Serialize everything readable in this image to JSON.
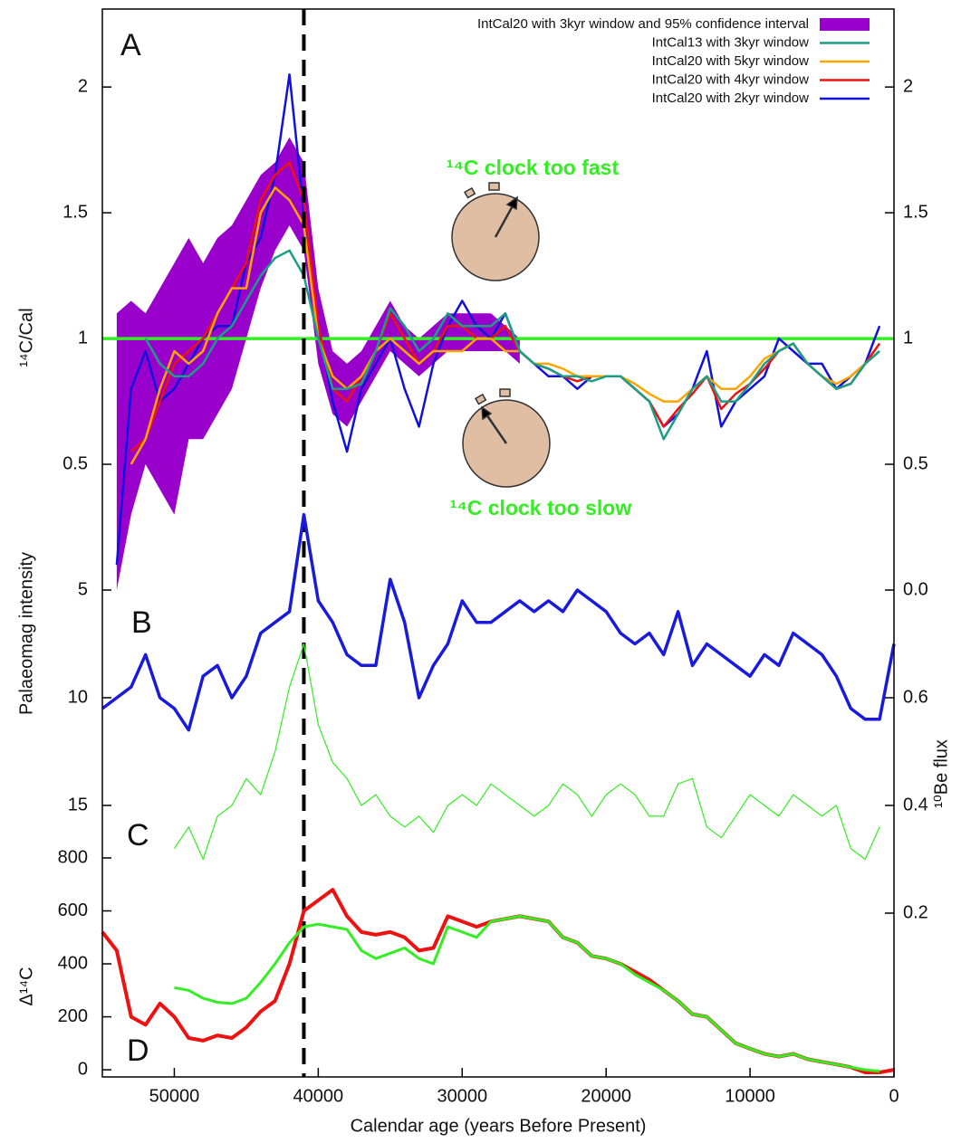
{
  "chart_data": [
    {
      "type": "line",
      "label": "A",
      "ylabel": "¹⁴C/Cal",
      "xlim": [
        55000,
        0
      ],
      "ylim": [
        0,
        2.31
      ],
      "yticks": [
        0.5,
        1,
        1.5,
        2
      ],
      "y2lim": [
        0,
        2.31
      ],
      "y2ticks": [
        {
          "value": 0,
          "label": "0.0"
        },
        0.5,
        1,
        1.5,
        2
      ],
      "legend": "upper right",
      "hline": {
        "value": 1,
        "color": "#33ee22"
      },
      "vline": 41000,
      "annotations": [
        "¹⁴C clock too fast",
        "¹⁴C clock too slow"
      ],
      "x": [
        54000,
        53000,
        52000,
        51000,
        50000,
        49000,
        48000,
        47000,
        46000,
        45000,
        44000,
        43000,
        42000,
        41000,
        40000,
        39000,
        38000,
        37000,
        36000,
        35000,
        34000,
        33000,
        32000,
        31000,
        30000,
        29000,
        28000,
        27000,
        26000,
        25000,
        24000,
        23000,
        22000,
        21000,
        20000,
        19000,
        18000,
        17000,
        16000,
        15000,
        14000,
        13000,
        12000,
        11000,
        10000,
        9000,
        8000,
        7000,
        6000,
        5000,
        4000,
        3000,
        2000,
        1000
      ],
      "band": {
        "name": "IntCal20 with 3kyr window and 95% confidence interval",
        "color": "#9900cc",
        "upper": [
          1.1,
          1.15,
          1.1,
          1.2,
          1.3,
          1.4,
          1.3,
          1.4,
          1.45,
          1.55,
          1.65,
          1.7,
          1.8,
          1.7,
          1.2,
          0.95,
          0.9,
          0.95,
          1.05,
          1.15,
          1.05,
          1.0,
          1.05,
          1.1,
          1.1,
          1.1,
          1.1,
          1.05,
          1.0,
          null,
          null,
          null,
          null,
          null,
          null,
          null,
          null,
          null,
          null,
          null,
          null,
          null,
          null,
          null,
          null,
          null,
          null,
          null,
          null,
          null,
          null,
          null,
          null,
          null
        ],
        "lower": [
          0.0,
          0.3,
          0.5,
          0.4,
          0.3,
          0.6,
          0.6,
          0.7,
          0.8,
          1.0,
          1.2,
          1.35,
          1.45,
          1.35,
          0.9,
          0.7,
          0.65,
          0.75,
          0.85,
          0.95,
          0.9,
          0.85,
          0.9,
          0.95,
          0.95,
          0.95,
          0.95,
          0.95,
          0.9,
          null,
          null,
          null,
          null,
          null,
          null,
          null,
          null,
          null,
          null,
          null,
          null,
          null,
          null,
          null,
          null,
          null,
          null,
          null,
          null,
          null,
          null,
          null,
          null,
          null
        ]
      },
      "series": [
        {
          "name": "IntCal13 with 3kyr window",
          "color": "#1a9e86",
          "values": [
            null,
            null,
            1.0,
            0.9,
            0.85,
            0.85,
            0.9,
            1.0,
            1.05,
            1.15,
            1.25,
            1.32,
            1.35,
            1.25,
            1.0,
            0.8,
            0.8,
            0.82,
            0.95,
            1.12,
            1.05,
            0.95,
            1.0,
            1.1,
            1.05,
            1.05,
            1.05,
            1.1,
            0.95,
            0.9,
            0.88,
            0.85,
            0.85,
            0.83,
            0.85,
            0.85,
            0.8,
            0.75,
            0.6,
            0.7,
            0.8,
            0.85,
            0.75,
            0.75,
            0.82,
            0.9,
            0.95,
            0.98,
            0.9,
            0.85,
            0.8,
            0.82,
            0.9,
            0.95
          ]
        },
        {
          "name": "IntCal20 with 5kyr window",
          "color": "#ffa500",
          "values": [
            null,
            0.5,
            0.6,
            0.8,
            0.95,
            0.9,
            0.95,
            1.1,
            1.2,
            1.2,
            1.5,
            1.6,
            1.55,
            1.45,
            1.0,
            0.85,
            0.8,
            0.85,
            0.95,
            1.0,
            0.95,
            0.9,
            0.95,
            0.95,
            0.95,
            1.0,
            1.0,
            0.95,
            0.95,
            0.9,
            0.9,
            0.88,
            0.85,
            0.85,
            0.85,
            0.85,
            0.82,
            0.78,
            0.75,
            0.75,
            0.8,
            0.85,
            0.8,
            0.8,
            0.85,
            0.92,
            0.95,
            0.98,
            0.9,
            0.85,
            0.82,
            0.85,
            0.9,
            0.95
          ]
        },
        {
          "name": "IntCal20 with 4kyr window",
          "color": "#ee1111",
          "values": [
            null,
            0.55,
            0.6,
            0.75,
            0.9,
            0.95,
            1.0,
            1.1,
            1.2,
            1.3,
            1.55,
            1.65,
            1.7,
            1.55,
            1.05,
            0.8,
            0.75,
            0.85,
            0.95,
            1.1,
            1.0,
            0.9,
            0.95,
            1.05,
            1.05,
            1.0,
            1.0,
            1.05,
            0.95,
            0.9,
            0.88,
            0.85,
            0.83,
            0.85,
            0.85,
            0.85,
            0.8,
            0.75,
            0.65,
            0.72,
            0.78,
            0.85,
            0.72,
            0.78,
            0.82,
            0.88,
            0.95,
            0.98,
            0.9,
            0.85,
            0.8,
            0.82,
            0.9,
            0.98
          ]
        },
        {
          "name": "IntCal20 with 2kyr window",
          "color": "#1111dd",
          "values": [
            0.1,
            0.8,
            0.95,
            0.75,
            0.8,
            0.9,
            1.0,
            1.05,
            1.05,
            1.3,
            1.4,
            1.65,
            2.05,
            1.5,
            1.05,
            0.75,
            0.55,
            0.8,
            0.9,
            1.0,
            0.8,
            0.65,
            0.9,
            1.05,
            1.15,
            1.05,
            1.0,
            1.1,
            0.95,
            0.9,
            0.85,
            0.85,
            0.8,
            0.85,
            0.85,
            0.85,
            0.8,
            0.75,
            0.65,
            0.7,
            0.8,
            0.95,
            0.65,
            0.75,
            0.8,
            0.85,
            1.0,
            0.95,
            0.9,
            0.9,
            0.8,
            0.85,
            0.9,
            1.05
          ]
        }
      ]
    },
    {
      "type": "line",
      "label": "B",
      "ylabel": "Palaeomag intensity",
      "xlim": [
        55000,
        0
      ],
      "ylim": [
        0,
        20
      ],
      "inverted": true,
      "yticks": [
        5,
        10,
        15
      ],
      "x": [
        55000,
        54000,
        53000,
        52000,
        51000,
        50000,
        49000,
        48000,
        47000,
        46000,
        45000,
        44000,
        43000,
        42000,
        41000,
        40000,
        39000,
        38000,
        37000,
        36000,
        35000,
        34000,
        33000,
        32000,
        31000,
        30000,
        29000,
        28000,
        27000,
        26000,
        25000,
        24000,
        23000,
        22000,
        21000,
        20000,
        19000,
        18000,
        17000,
        16000,
        15000,
        14000,
        13000,
        12000,
        11000,
        10000,
        9000,
        8000,
        7000,
        6000,
        5000,
        4000,
        3000,
        2000,
        1000,
        0
      ],
      "series": [
        {
          "color": "#1a1adc",
          "values": [
            10.5,
            10,
            9.5,
            8,
            10,
            10.5,
            11.5,
            9,
            8.5,
            10,
            9,
            7,
            6.5,
            6,
            1.5,
            5.5,
            6.5,
            8,
            8.5,
            8.5,
            4.5,
            6.5,
            10,
            8.5,
            7.5,
            5.5,
            6.5,
            6.5,
            6,
            5.5,
            6,
            5.5,
            6,
            5,
            5.5,
            6,
            7,
            7.5,
            7,
            8,
            6,
            8.5,
            7.5,
            8,
            8.5,
            9,
            8,
            8.5,
            7,
            7.5,
            8,
            9,
            10.5,
            11,
            11,
            7.5
          ]
        }
      ]
    },
    {
      "type": "line",
      "label": "C",
      "y2label": "¹⁰Be flux",
      "xlim": [
        55000,
        0
      ],
      "y2lim": [
        0.2,
        0.8
      ],
      "y2ticks": [
        0.2,
        0.4,
        0.6
      ],
      "x": [
        50000,
        49000,
        48000,
        47000,
        46000,
        45000,
        44000,
        43000,
        42000,
        41000,
        40000,
        39000,
        38000,
        37000,
        36000,
        35000,
        34000,
        33000,
        32000,
        31000,
        30000,
        29000,
        28000,
        27000,
        26000,
        25000,
        24000,
        23000,
        22000,
        21000,
        20000,
        19000,
        18000,
        17000,
        16000,
        15000,
        14000,
        13000,
        12000,
        11000,
        10000,
        9000,
        8000,
        7000,
        6000,
        5000,
        4000,
        3000,
        2000,
        1000
      ],
      "series": [
        {
          "color": "#33ee22",
          "axis": "y2",
          "values": [
            0.32,
            0.36,
            0.3,
            0.38,
            0.4,
            0.45,
            0.42,
            0.5,
            0.62,
            0.7,
            0.55,
            0.48,
            0.45,
            0.4,
            0.42,
            0.38,
            0.36,
            0.38,
            0.35,
            0.4,
            0.42,
            0.4,
            0.44,
            0.42,
            0.4,
            0.38,
            0.4,
            0.44,
            0.42,
            0.38,
            0.42,
            0.44,
            0.42,
            0.38,
            0.38,
            0.44,
            0.45,
            0.36,
            0.34,
            0.38,
            0.42,
            0.4,
            0.38,
            0.42,
            0.4,
            0.38,
            0.4,
            0.32,
            0.3,
            0.36
          ]
        }
      ]
    },
    {
      "type": "line",
      "label": "D",
      "ylabel": "Δ¹⁴C",
      "xlabel": "Calendar age (years Before Present)",
      "xlim": [
        55000,
        0
      ],
      "xticks": [
        50000,
        40000,
        30000,
        20000,
        10000,
        0
      ],
      "ylim": [
        -27,
        800
      ],
      "yticks": [
        0,
        200,
        400,
        600,
        800
      ],
      "x": [
        55000,
        54000,
        53000,
        52000,
        51000,
        50000,
        49000,
        48000,
        47000,
        46000,
        45000,
        44000,
        43000,
        42000,
        41000,
        40000,
        39000,
        38000,
        37000,
        36000,
        35000,
        34000,
        33000,
        32000,
        31000,
        30000,
        29000,
        28000,
        27000,
        26000,
        25000,
        24000,
        23000,
        22000,
        21000,
        20000,
        19000,
        18000,
        17000,
        16000,
        15000,
        14000,
        13000,
        12000,
        11000,
        10000,
        9000,
        8000,
        7000,
        6000,
        5000,
        4000,
        3000,
        2000,
        1000,
        0
      ],
      "series": [
        {
          "color": "#33ee22",
          "values": [
            null,
            null,
            null,
            null,
            null,
            310,
            300,
            270,
            255,
            250,
            270,
            330,
            400,
            480,
            540,
            550,
            540,
            530,
            450,
            420,
            440,
            460,
            420,
            400,
            540,
            520,
            500,
            560,
            570,
            580,
            570,
            560,
            500,
            480,
            430,
            420,
            400,
            360,
            330,
            300,
            260,
            210,
            200,
            150,
            100,
            80,
            60,
            50,
            60,
            40,
            30,
            20,
            10,
            0,
            -5,
            null
          ]
        },
        {
          "color": "#ee1111",
          "values": [
            520,
            450,
            200,
            170,
            250,
            200,
            120,
            110,
            130,
            120,
            160,
            220,
            260,
            400,
            600,
            640,
            680,
            580,
            520,
            510,
            520,
            500,
            450,
            460,
            580,
            560,
            540,
            560,
            570,
            580,
            570,
            560,
            500,
            480,
            430,
            420,
            400,
            370,
            340,
            300,
            260,
            210,
            200,
            150,
            100,
            80,
            60,
            50,
            60,
            40,
            30,
            20,
            10,
            -10,
            -10,
            0
          ]
        }
      ]
    }
  ]
}
